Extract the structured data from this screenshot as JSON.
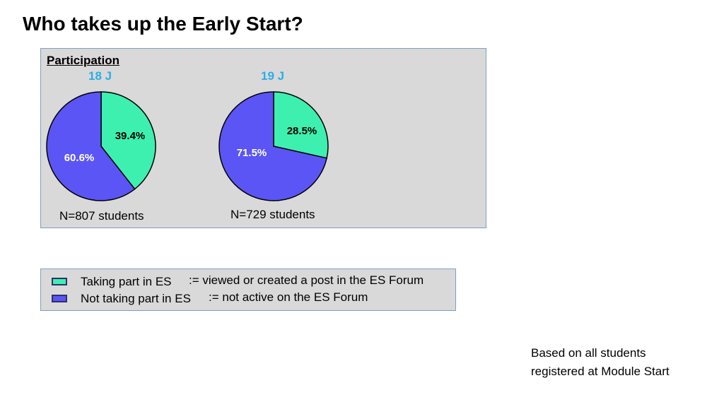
{
  "title": "Who takes up the Early Start?",
  "panel_label": "Participation",
  "colors": {
    "taking": "#3ef0b0",
    "not_taking": "#5b55f5",
    "period_label": "#2aaee8"
  },
  "chart_data": [
    {
      "type": "pie",
      "title": "18 J",
      "labels": [
        "Taking part in ES",
        "Not taking part in ES"
      ],
      "values": [
        39.4,
        60.6
      ],
      "value_labels": [
        "39.4%",
        "60.6%"
      ],
      "caption": "N=807 students"
    },
    {
      "type": "pie",
      "title": "19 J",
      "labels": [
        "Taking part in ES",
        "Not taking part in ES"
      ],
      "values": [
        28.5,
        71.5
      ],
      "value_labels": [
        "28.5%",
        "71.5%"
      ],
      "caption": "N=729 students"
    }
  ],
  "legend": {
    "items": [
      {
        "label": "Taking part in ES",
        "definition": ":= viewed or created a post in the ES Forum"
      },
      {
        "label": "Not taking part in ES",
        "definition": ":= not active on the ES Forum"
      }
    ]
  },
  "note_lines": [
    "Based on all students",
    "registered at Module Start"
  ]
}
